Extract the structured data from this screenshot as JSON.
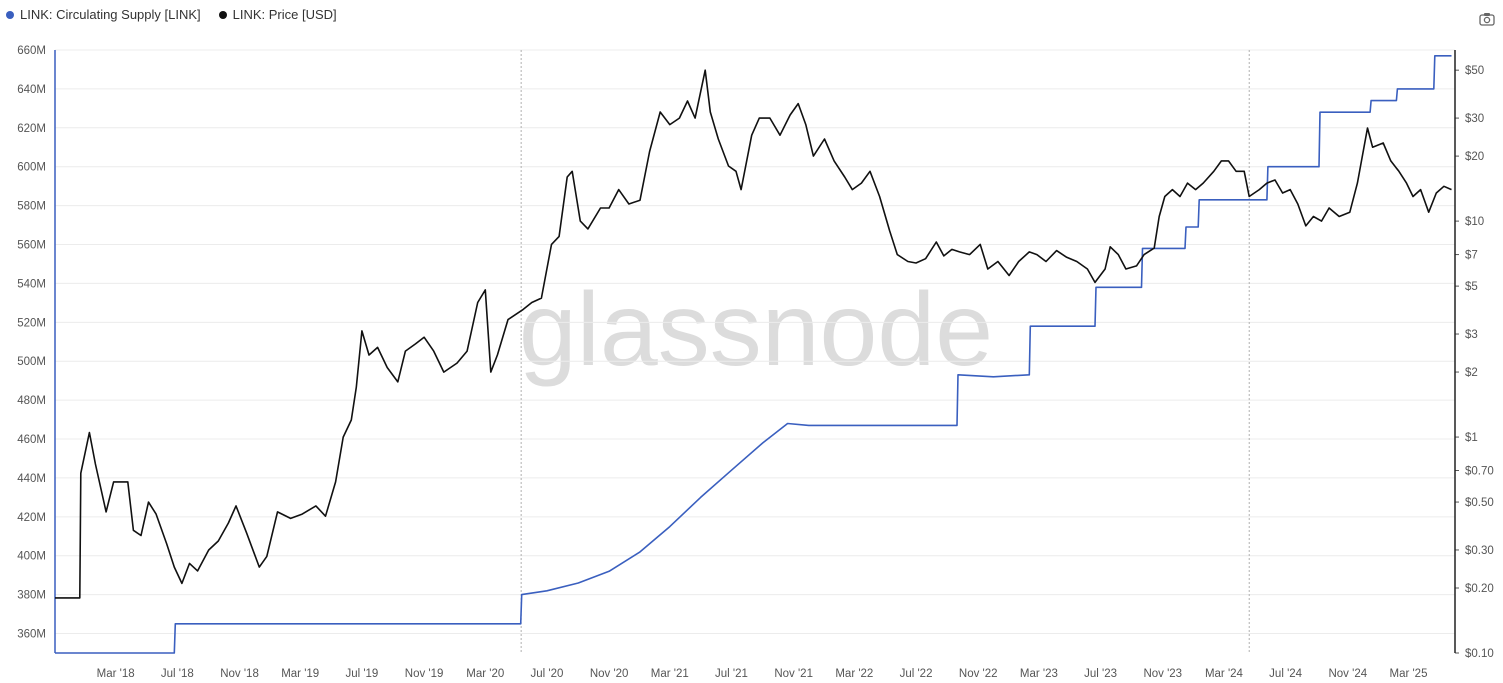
{
  "legend": [
    {
      "label": "LINK: Circulating Supply [LINK]",
      "color": "#3a5fbf"
    },
    {
      "label": "LINK: Price [USD]",
      "color": "#111111"
    }
  ],
  "watermark": "glassnode",
  "toolbar": {
    "camera_icon": "camera-icon"
  },
  "chart_data": {
    "type": "line",
    "title": "",
    "x_ticks": [
      "Mar '18",
      "Jul '18",
      "Nov '18",
      "Mar '19",
      "Jul '19",
      "Nov '19",
      "Mar '20",
      "Jul '20",
      "Nov '20",
      "Mar '21",
      "Jul '21",
      "Nov '21",
      "Mar '22",
      "Jul '22",
      "Nov '22",
      "Mar '23",
      "Jul '23",
      "Nov '23",
      "Mar '24",
      "Jul '24",
      "Nov '24",
      "Mar '25"
    ],
    "x_range": [
      "2017-11-01",
      "2025-06-01"
    ],
    "y_left": {
      "label": "Circulating Supply",
      "range": [
        350,
        660
      ],
      "unit": "M",
      "ticks": [
        "360M",
        "380M",
        "400M",
        "420M",
        "440M",
        "460M",
        "480M",
        "500M",
        "520M",
        "540M",
        "560M",
        "580M",
        "600M",
        "620M",
        "640M",
        "660M"
      ]
    },
    "y_right": {
      "label": "Price",
      "scale": "log",
      "range": [
        0.1,
        62
      ],
      "ticks": [
        {
          "label": "$50",
          "value": 50
        },
        {
          "label": "$30",
          "value": 30
        },
        {
          "label": "$20",
          "value": 20
        },
        {
          "label": "$10",
          "value": 10
        },
        {
          "label": "$7",
          "value": 7
        },
        {
          "label": "$5",
          "value": 5
        },
        {
          "label": "$3",
          "value": 3
        },
        {
          "label": "$2",
          "value": 2
        },
        {
          "label": "$1",
          "value": 1
        },
        {
          "label": "$0.70",
          "value": 0.7
        },
        {
          "label": "$0.50",
          "value": 0.5
        },
        {
          "label": "$0.30",
          "value": 0.3
        },
        {
          "label": "$0.20",
          "value": 0.2
        },
        {
          "label": "$0.10",
          "value": 0.1
        }
      ]
    },
    "vertical_markers": [
      "2020-05-11",
      "2024-04-20"
    ],
    "series": [
      {
        "name": "LINK: Circulating Supply [LINK]",
        "axis": "left",
        "color": "#3a5fbf",
        "points": [
          [
            "2017-11-01",
            350
          ],
          [
            "2018-06-25",
            350
          ],
          [
            "2018-06-27",
            365
          ],
          [
            "2018-11-01",
            365
          ],
          [
            "2019-06-01",
            365
          ],
          [
            "2020-01-01",
            365
          ],
          [
            "2020-05-10",
            365
          ],
          [
            "2020-05-12",
            380
          ],
          [
            "2020-07-01",
            382
          ],
          [
            "2020-09-01",
            386
          ],
          [
            "2020-11-01",
            392
          ],
          [
            "2021-01-01",
            402
          ],
          [
            "2021-03-01",
            415
          ],
          [
            "2021-05-01",
            430
          ],
          [
            "2021-07-01",
            444
          ],
          [
            "2021-09-01",
            458
          ],
          [
            "2021-10-20",
            468
          ],
          [
            "2021-12-01",
            467
          ],
          [
            "2022-03-01",
            467
          ],
          [
            "2022-06-01",
            467
          ],
          [
            "2022-09-20",
            467
          ],
          [
            "2022-09-22",
            493
          ],
          [
            "2022-12-01",
            492
          ],
          [
            "2023-02-10",
            493
          ],
          [
            "2023-02-12",
            518
          ],
          [
            "2023-06-20",
            518
          ],
          [
            "2023-06-22",
            538
          ],
          [
            "2023-09-20",
            538
          ],
          [
            "2023-09-22",
            558
          ],
          [
            "2023-12-01",
            558
          ],
          [
            "2023-12-15",
            558
          ],
          [
            "2023-12-17",
            569
          ],
          [
            "2024-01-10",
            569
          ],
          [
            "2024-01-12",
            583
          ],
          [
            "2024-04-01",
            583
          ],
          [
            "2024-05-25",
            583
          ],
          [
            "2024-05-27",
            600
          ],
          [
            "2024-09-05",
            600
          ],
          [
            "2024-09-07",
            628
          ],
          [
            "2024-12-15",
            628
          ],
          [
            "2024-12-17",
            634
          ],
          [
            "2025-02-05",
            634
          ],
          [
            "2025-02-07",
            640
          ],
          [
            "2025-04-20",
            640
          ],
          [
            "2025-04-22",
            657
          ],
          [
            "2025-05-25",
            657
          ]
        ]
      },
      {
        "name": "LINK: Price [USD]",
        "axis": "right",
        "color": "#111111",
        "points": [
          [
            "2017-11-01",
            0.18
          ],
          [
            "2017-12-20",
            0.18
          ],
          [
            "2017-12-22",
            0.68
          ],
          [
            "2018-01-08",
            1.05
          ],
          [
            "2018-01-20",
            0.75
          ],
          [
            "2018-02-10",
            0.45
          ],
          [
            "2018-02-25",
            0.62
          ],
          [
            "2018-03-15",
            0.62
          ],
          [
            "2018-03-25",
            0.62
          ],
          [
            "2018-04-05",
            0.37
          ],
          [
            "2018-04-20",
            0.35
          ],
          [
            "2018-05-05",
            0.5
          ],
          [
            "2018-05-20",
            0.44
          ],
          [
            "2018-06-10",
            0.32
          ],
          [
            "2018-06-25",
            0.25
          ],
          [
            "2018-07-10",
            0.21
          ],
          [
            "2018-07-25",
            0.26
          ],
          [
            "2018-08-10",
            0.24
          ],
          [
            "2018-09-01",
            0.3
          ],
          [
            "2018-09-20",
            0.33
          ],
          [
            "2018-10-10",
            0.4
          ],
          [
            "2018-10-25",
            0.48
          ],
          [
            "2018-11-15",
            0.36
          ],
          [
            "2018-12-10",
            0.25
          ],
          [
            "2018-12-25",
            0.28
          ],
          [
            "2019-01-15",
            0.45
          ],
          [
            "2019-02-10",
            0.42
          ],
          [
            "2019-03-05",
            0.44
          ],
          [
            "2019-04-01",
            0.48
          ],
          [
            "2019-04-20",
            0.43
          ],
          [
            "2019-05-10",
            0.62
          ],
          [
            "2019-05-25",
            1.0
          ],
          [
            "2019-06-10",
            1.2
          ],
          [
            "2019-06-20",
            1.7
          ],
          [
            "2019-07-01",
            3.1
          ],
          [
            "2019-07-15",
            2.4
          ],
          [
            "2019-08-01",
            2.6
          ],
          [
            "2019-08-20",
            2.1
          ],
          [
            "2019-09-10",
            1.8
          ],
          [
            "2019-09-25",
            2.5
          ],
          [
            "2019-10-15",
            2.7
          ],
          [
            "2019-11-01",
            2.9
          ],
          [
            "2019-11-20",
            2.5
          ],
          [
            "2019-12-10",
            2.0
          ],
          [
            "2020-01-05",
            2.2
          ],
          [
            "2020-01-25",
            2.5
          ],
          [
            "2020-02-15",
            4.2
          ],
          [
            "2020-03-01",
            4.8
          ],
          [
            "2020-03-12",
            2.0
          ],
          [
            "2020-03-25",
            2.4
          ],
          [
            "2020-04-15",
            3.5
          ],
          [
            "2020-05-15",
            3.9
          ],
          [
            "2020-06-01",
            4.2
          ],
          [
            "2020-06-20",
            4.4
          ],
          [
            "2020-07-10",
            7.8
          ],
          [
            "2020-07-25",
            8.5
          ],
          [
            "2020-08-10",
            16
          ],
          [
            "2020-08-20",
            17
          ],
          [
            "2020-09-05",
            10
          ],
          [
            "2020-09-20",
            9.2
          ],
          [
            "2020-10-15",
            11.5
          ],
          [
            "2020-11-01",
            11.5
          ],
          [
            "2020-11-20",
            14
          ],
          [
            "2020-12-10",
            12
          ],
          [
            "2021-01-01",
            12.5
          ],
          [
            "2021-01-20",
            21
          ],
          [
            "2021-02-10",
            32
          ],
          [
            "2021-03-01",
            28
          ],
          [
            "2021-03-20",
            30
          ],
          [
            "2021-04-05",
            36
          ],
          [
            "2021-04-20",
            30
          ],
          [
            "2021-05-10",
            50
          ],
          [
            "2021-05-20",
            32
          ],
          [
            "2021-06-05",
            24
          ],
          [
            "2021-06-25",
            18
          ],
          [
            "2021-07-10",
            17
          ],
          [
            "2021-07-20",
            14
          ],
          [
            "2021-08-10",
            25
          ],
          [
            "2021-08-25",
            30
          ],
          [
            "2021-09-15",
            30
          ],
          [
            "2021-10-05",
            25
          ],
          [
            "2021-10-25",
            31
          ],
          [
            "2021-11-10",
            35
          ],
          [
            "2021-11-25",
            28
          ],
          [
            "2021-12-10",
            20
          ],
          [
            "2022-01-01",
            24
          ],
          [
            "2022-01-20",
            19
          ],
          [
            "2022-02-10",
            16
          ],
          [
            "2022-02-25",
            14
          ],
          [
            "2022-03-15",
            15
          ],
          [
            "2022-04-01",
            17
          ],
          [
            "2022-04-20",
            13
          ],
          [
            "2022-05-10",
            9
          ],
          [
            "2022-05-25",
            7
          ],
          [
            "2022-06-15",
            6.5
          ],
          [
            "2022-07-01",
            6.4
          ],
          [
            "2022-07-20",
            6.7
          ],
          [
            "2022-08-10",
            8
          ],
          [
            "2022-08-25",
            6.9
          ],
          [
            "2022-09-10",
            7.4
          ],
          [
            "2022-09-25",
            7.2
          ],
          [
            "2022-10-15",
            7.0
          ],
          [
            "2022-11-05",
            7.8
          ],
          [
            "2022-11-20",
            6.0
          ],
          [
            "2022-12-10",
            6.5
          ],
          [
            "2023-01-01",
            5.6
          ],
          [
            "2023-01-20",
            6.5
          ],
          [
            "2023-02-10",
            7.2
          ],
          [
            "2023-02-25",
            7.0
          ],
          [
            "2023-03-15",
            6.5
          ],
          [
            "2023-04-05",
            7.3
          ],
          [
            "2023-04-25",
            6.8
          ],
          [
            "2023-05-15",
            6.5
          ],
          [
            "2023-06-05",
            6.0
          ],
          [
            "2023-06-20",
            5.2
          ],
          [
            "2023-07-10",
            6.0
          ],
          [
            "2023-07-20",
            7.6
          ],
          [
            "2023-08-05",
            7.0
          ],
          [
            "2023-08-20",
            6.0
          ],
          [
            "2023-09-10",
            6.2
          ],
          [
            "2023-09-25",
            7.0
          ],
          [
            "2023-10-15",
            7.5
          ],
          [
            "2023-10-25",
            10.5
          ],
          [
            "2023-11-05",
            13
          ],
          [
            "2023-11-20",
            14
          ],
          [
            "2023-12-05",
            13
          ],
          [
            "2023-12-20",
            15
          ],
          [
            "2024-01-05",
            14
          ],
          [
            "2024-01-20",
            15
          ],
          [
            "2024-02-10",
            17
          ],
          [
            "2024-02-25",
            19
          ],
          [
            "2024-03-10",
            19
          ],
          [
            "2024-03-25",
            17
          ],
          [
            "2024-04-10",
            17
          ],
          [
            "2024-04-20",
            13
          ],
          [
            "2024-05-10",
            14
          ],
          [
            "2024-05-25",
            15
          ],
          [
            "2024-06-10",
            15.5
          ],
          [
            "2024-06-25",
            13.5
          ],
          [
            "2024-07-10",
            14
          ],
          [
            "2024-07-25",
            12
          ],
          [
            "2024-08-10",
            9.5
          ],
          [
            "2024-08-25",
            10.5
          ],
          [
            "2024-09-10",
            10
          ],
          [
            "2024-09-25",
            11.5
          ],
          [
            "2024-10-15",
            10.5
          ],
          [
            "2024-11-05",
            11
          ],
          [
            "2024-11-20",
            15
          ],
          [
            "2024-12-10",
            27
          ],
          [
            "2024-12-20",
            22
          ],
          [
            "2025-01-10",
            23
          ],
          [
            "2025-01-25",
            19
          ],
          [
            "2025-02-10",
            17
          ],
          [
            "2025-02-25",
            15
          ],
          [
            "2025-03-10",
            13
          ],
          [
            "2025-03-25",
            14
          ],
          [
            "2025-04-10",
            11
          ],
          [
            "2025-04-25",
            13.5
          ],
          [
            "2025-05-10",
            14.5
          ],
          [
            "2025-05-25",
            14.0
          ]
        ]
      }
    ]
  }
}
